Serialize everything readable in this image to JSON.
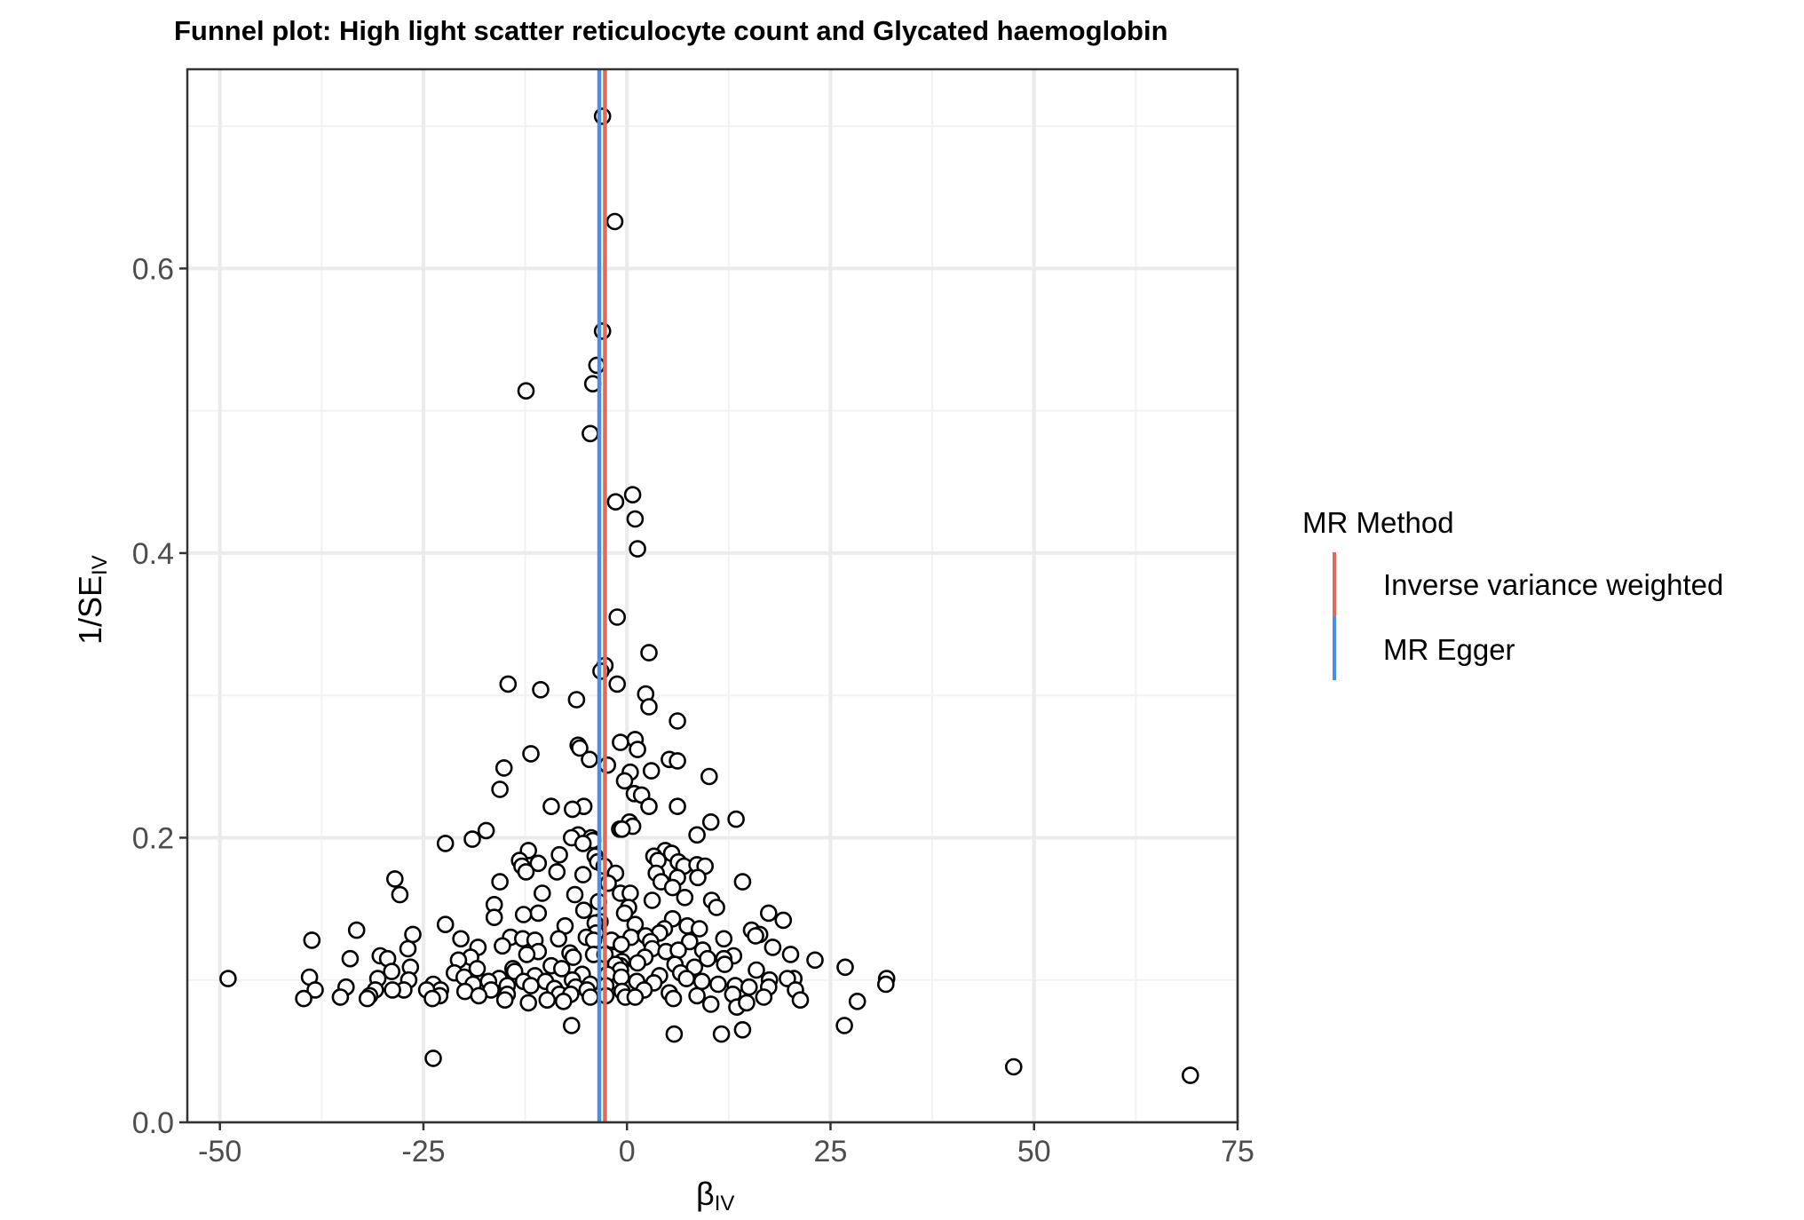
{
  "chart_data": {
    "type": "scatter",
    "title": "Funnel plot: High light scatter reticulocyte count and Glycated haemoglobin",
    "xlabel": "β",
    "xlabel_sub": "IV",
    "ylabel": "1/SE",
    "ylabel_sub": "IV",
    "xlim": [
      -54,
      75
    ],
    "ylim": [
      0,
      0.74
    ],
    "xticks": [
      -50,
      -25,
      0,
      25,
      50,
      75
    ],
    "xtick_labels": [
      "-50",
      "-25",
      "0",
      "25",
      "50",
      "75"
    ],
    "yticks": [
      0.0,
      0.2,
      0.4,
      0.6
    ],
    "ytick_labels": [
      "0.0",
      "0.2",
      "0.4",
      "0.6"
    ],
    "grid": true,
    "legend": {
      "title": "MR Method",
      "placement": "right",
      "entries": [
        {
          "label": "Inverse variance weighted",
          "color": "#E06A5B"
        },
        {
          "label": "MR Egger",
          "color": "#4B8EE8"
        }
      ]
    },
    "vlines": [
      {
        "method": "Inverse variance weighted",
        "x": -2.7,
        "color": "#E06A5B"
      },
      {
        "method": "MR Egger",
        "x": -3.4,
        "color": "#4B8EE8"
      }
    ],
    "points": [
      [
        -3.0,
        0.707
      ],
      [
        -1.5,
        0.633
      ],
      [
        -3.0,
        0.556
      ],
      [
        -3.7,
        0.532
      ],
      [
        -4.2,
        0.519
      ],
      [
        -12.4,
        0.514
      ],
      [
        -4.5,
        0.484
      ],
      [
        0.7,
        0.441
      ],
      [
        -1.4,
        0.436
      ],
      [
        1.0,
        0.424
      ],
      [
        1.3,
        0.403
      ],
      [
        -1.2,
        0.355
      ],
      [
        2.7,
        0.33
      ],
      [
        -2.7,
        0.321
      ],
      [
        -3.2,
        0.317
      ],
      [
        -14.6,
        0.308
      ],
      [
        -1.2,
        0.308
      ],
      [
        -10.6,
        0.304
      ],
      [
        2.3,
        0.301
      ],
      [
        -6.2,
        0.297
      ],
      [
        2.7,
        0.292
      ],
      [
        6.2,
        0.282
      ],
      [
        1.0,
        0.269
      ],
      [
        -0.8,
        0.267
      ],
      [
        1.3,
        0.262
      ],
      [
        -6.0,
        0.265
      ],
      [
        -5.8,
        0.263
      ],
      [
        -11.8,
        0.259
      ],
      [
        5.2,
        0.255
      ],
      [
        6.2,
        0.254
      ],
      [
        -4.6,
        0.255
      ],
      [
        -2.4,
        0.251
      ],
      [
        -15.1,
        0.249
      ],
      [
        0.4,
        0.246
      ],
      [
        3.0,
        0.247
      ],
      [
        10.1,
        0.243
      ],
      [
        -0.3,
        0.24
      ],
      [
        -15.6,
        0.234
      ],
      [
        0.9,
        0.231
      ],
      [
        1.8,
        0.23
      ],
      [
        6.2,
        0.222
      ],
      [
        2.7,
        0.222
      ],
      [
        -9.3,
        0.222
      ],
      [
        -5.3,
        0.222
      ],
      [
        -6.7,
        0.22
      ],
      [
        13.4,
        0.213
      ],
      [
        10.3,
        0.211
      ],
      [
        0.3,
        0.211
      ],
      [
        0.7,
        0.208
      ],
      [
        -0.9,
        0.206
      ],
      [
        -0.6,
        0.206
      ],
      [
        -17.3,
        0.205
      ],
      [
        -6.0,
        0.202
      ],
      [
        8.6,
        0.202
      ],
      [
        -4.4,
        0.2
      ],
      [
        -19.0,
        0.199
      ],
      [
        -6.8,
        0.2
      ],
      [
        -4.2,
        0.198
      ],
      [
        -5.4,
        0.196
      ],
      [
        -22.3,
        0.196
      ],
      [
        -12.1,
        0.191
      ],
      [
        4.7,
        0.191
      ],
      [
        5.5,
        0.189
      ],
      [
        -8.3,
        0.188
      ],
      [
        3.3,
        0.187
      ],
      [
        -3.9,
        0.187
      ],
      [
        -13.2,
        0.184
      ],
      [
        -3.6,
        0.183
      ],
      [
        -12.9,
        0.18
      ],
      [
        -10.9,
        0.182
      ],
      [
        6.3,
        0.183
      ],
      [
        3.8,
        0.184
      ],
      [
        7.0,
        0.18
      ],
      [
        8.6,
        0.181
      ],
      [
        9.6,
        0.18
      ],
      [
        -2.8,
        0.18
      ],
      [
        -12.4,
        0.176
      ],
      [
        -8.6,
        0.176
      ],
      [
        -1.4,
        0.175
      ],
      [
        3.6,
        0.175
      ],
      [
        -5.4,
        0.174
      ],
      [
        6.2,
        0.172
      ],
      [
        8.7,
        0.172
      ],
      [
        -28.5,
        0.171
      ],
      [
        4.2,
        0.169
      ],
      [
        14.2,
        0.169
      ],
      [
        -15.6,
        0.169
      ],
      [
        -2.3,
        0.168
      ],
      [
        5.6,
        0.165
      ],
      [
        -27.9,
        0.16
      ],
      [
        -6.4,
        0.16
      ],
      [
        -10.4,
        0.161
      ],
      [
        -0.8,
        0.161
      ],
      [
        0.4,
        0.161
      ],
      [
        7.1,
        0.158
      ],
      [
        10.4,
        0.156
      ],
      [
        3.1,
        0.156
      ],
      [
        -3.5,
        0.155
      ],
      [
        -16.3,
        0.153
      ],
      [
        11.0,
        0.151
      ],
      [
        0.2,
        0.151
      ],
      [
        -5.3,
        0.149
      ],
      [
        -0.3,
        0.147
      ],
      [
        -10.9,
        0.147
      ],
      [
        -12.7,
        0.146
      ],
      [
        17.4,
        0.147
      ],
      [
        -16.3,
        0.144
      ],
      [
        5.6,
        0.143
      ],
      [
        19.2,
        0.142
      ],
      [
        -3.3,
        0.141
      ],
      [
        -3.9,
        0.14
      ],
      [
        1.0,
        0.139
      ],
      [
        -22.3,
        0.139
      ],
      [
        7.4,
        0.138
      ],
      [
        4.6,
        0.136
      ],
      [
        -7.6,
        0.138
      ],
      [
        -33.2,
        0.135
      ],
      [
        15.3,
        0.135
      ],
      [
        8.9,
        0.136
      ],
      [
        -3.8,
        0.133
      ],
      [
        4.0,
        0.133
      ],
      [
        16.3,
        0.132
      ],
      [
        -5.0,
        0.13
      ],
      [
        -14.3,
        0.13
      ],
      [
        0.5,
        0.13
      ],
      [
        2.3,
        0.131
      ],
      [
        -26.3,
        0.132
      ],
      [
        -20.4,
        0.129
      ],
      [
        -12.8,
        0.129
      ],
      [
        -11.3,
        0.128
      ],
      [
        -38.7,
        0.128
      ],
      [
        -8.4,
        0.129
      ],
      [
        -1.7,
        0.127
      ],
      [
        -1.9,
        0.128
      ],
      [
        2.9,
        0.127
      ],
      [
        11.9,
        0.129
      ],
      [
        15.8,
        0.131
      ],
      [
        -4.1,
        0.128
      ],
      [
        7.7,
        0.127
      ],
      [
        -0.7,
        0.125
      ],
      [
        -15.3,
        0.124
      ],
      [
        17.9,
        0.123
      ],
      [
        -18.3,
        0.123
      ],
      [
        3.1,
        0.122
      ],
      [
        4.8,
        0.12
      ],
      [
        9.3,
        0.121
      ],
      [
        -26.9,
        0.122
      ],
      [
        6.3,
        0.121
      ],
      [
        -10.9,
        0.12
      ],
      [
        -7.0,
        0.119
      ],
      [
        -4.1,
        0.118
      ],
      [
        -2.7,
        0.118
      ],
      [
        -12.3,
        0.118
      ],
      [
        -30.3,
        0.117
      ],
      [
        -6.6,
        0.116
      ],
      [
        -19.2,
        0.116
      ],
      [
        20.1,
        0.118
      ],
      [
        2.2,
        0.116
      ],
      [
        -20.7,
        0.114
      ],
      [
        13.1,
        0.117
      ],
      [
        11.9,
        0.115
      ],
      [
        9.9,
        0.115
      ],
      [
        -34.0,
        0.115
      ],
      [
        -29.4,
        0.115
      ],
      [
        23.1,
        0.114
      ],
      [
        -0.6,
        0.113
      ],
      [
        1.3,
        0.112
      ],
      [
        5.9,
        0.111
      ],
      [
        -9.3,
        0.11
      ],
      [
        12.0,
        0.111
      ],
      [
        -0.8,
        0.11
      ],
      [
        -1.4,
        0.111
      ],
      [
        8.3,
        0.109
      ],
      [
        -14.0,
        0.108
      ],
      [
        -26.6,
        0.109
      ],
      [
        -18.4,
        0.108
      ],
      [
        -8.0,
        0.108
      ],
      [
        -0.8,
        0.107
      ],
      [
        15.9,
        0.107
      ],
      [
        -13.8,
        0.106
      ],
      [
        -28.9,
        0.106
      ],
      [
        26.8,
        0.109
      ],
      [
        -21.2,
        0.105
      ],
      [
        6.6,
        0.105
      ],
      [
        -2.4,
        0.104
      ],
      [
        -5.5,
        0.104
      ],
      [
        -11.3,
        0.103
      ],
      [
        -20.0,
        0.102
      ],
      [
        4.0,
        0.103
      ],
      [
        -0.7,
        0.102
      ],
      [
        -15.7,
        0.101
      ],
      [
        7.3,
        0.101
      ],
      [
        -30.6,
        0.101
      ],
      [
        20.5,
        0.101
      ],
      [
        -26.8,
        0.1
      ],
      [
        -6.7,
        0.1
      ],
      [
        -17.0,
        0.099
      ],
      [
        1.2,
        0.099
      ],
      [
        17.5,
        0.1
      ],
      [
        19.7,
        0.101
      ],
      [
        -10.0,
        0.099
      ],
      [
        -12.7,
        0.099
      ],
      [
        -23.8,
        0.097
      ],
      [
        9.2,
        0.099
      ],
      [
        3.3,
        0.098
      ],
      [
        -4.5,
        0.097
      ],
      [
        -11.8,
        0.096
      ],
      [
        -14.7,
        0.096
      ],
      [
        -18.9,
        0.097
      ],
      [
        -2.6,
        0.096
      ],
      [
        -6.3,
        0.095
      ],
      [
        -8.9,
        0.094
      ],
      [
        -39.0,
        0.102
      ],
      [
        -49.0,
        0.101
      ],
      [
        31.9,
        0.101
      ],
      [
        11.2,
        0.097
      ],
      [
        13.3,
        0.096
      ],
      [
        15.0,
        0.095
      ],
      [
        -22.9,
        0.093
      ],
      [
        -4.9,
        0.093
      ],
      [
        -30.9,
        0.093
      ],
      [
        -16.7,
        0.093
      ],
      [
        -27.4,
        0.093
      ],
      [
        -28.8,
        0.093
      ],
      [
        17.4,
        0.095
      ],
      [
        20.7,
        0.093
      ],
      [
        2.1,
        0.093
      ],
      [
        31.8,
        0.097
      ],
      [
        -38.3,
        0.093
      ],
      [
        -34.5,
        0.095
      ],
      [
        -0.6,
        0.092
      ],
      [
        -24.6,
        0.093
      ],
      [
        -19.9,
        0.092
      ],
      [
        5.2,
        0.091
      ],
      [
        -14.7,
        0.09
      ],
      [
        -8.3,
        0.09
      ],
      [
        -6.9,
        0.09
      ],
      [
        8.6,
        0.089
      ],
      [
        -2.6,
        0.089
      ],
      [
        -23.0,
        0.089
      ],
      [
        13.0,
        0.09
      ],
      [
        -18.2,
        0.089
      ],
      [
        -31.6,
        0.089
      ],
      [
        -35.2,
        0.088
      ],
      [
        -39.7,
        0.087
      ],
      [
        -31.9,
        0.087
      ],
      [
        -23.9,
        0.087
      ],
      [
        16.8,
        0.088
      ],
      [
        21.3,
        0.086
      ],
      [
        -0.2,
        0.088
      ],
      [
        1.0,
        0.088
      ],
      [
        -4.5,
        0.088
      ],
      [
        -12.1,
        0.084
      ],
      [
        10.3,
        0.083
      ],
      [
        28.3,
        0.085
      ],
      [
        -7.8,
        0.085
      ],
      [
        -9.8,
        0.086
      ],
      [
        13.5,
        0.081
      ],
      [
        5.7,
        0.087
      ],
      [
        -15.0,
        0.086
      ],
      [
        14.7,
        0.084
      ],
      [
        -6.8,
        0.068
      ],
      [
        26.7,
        0.068
      ],
      [
        11.6,
        0.062
      ],
      [
        5.8,
        0.062
      ],
      [
        14.2,
        0.065
      ],
      [
        -23.8,
        0.045
      ],
      [
        47.5,
        0.039
      ],
      [
        69.2,
        0.033
      ]
    ]
  }
}
